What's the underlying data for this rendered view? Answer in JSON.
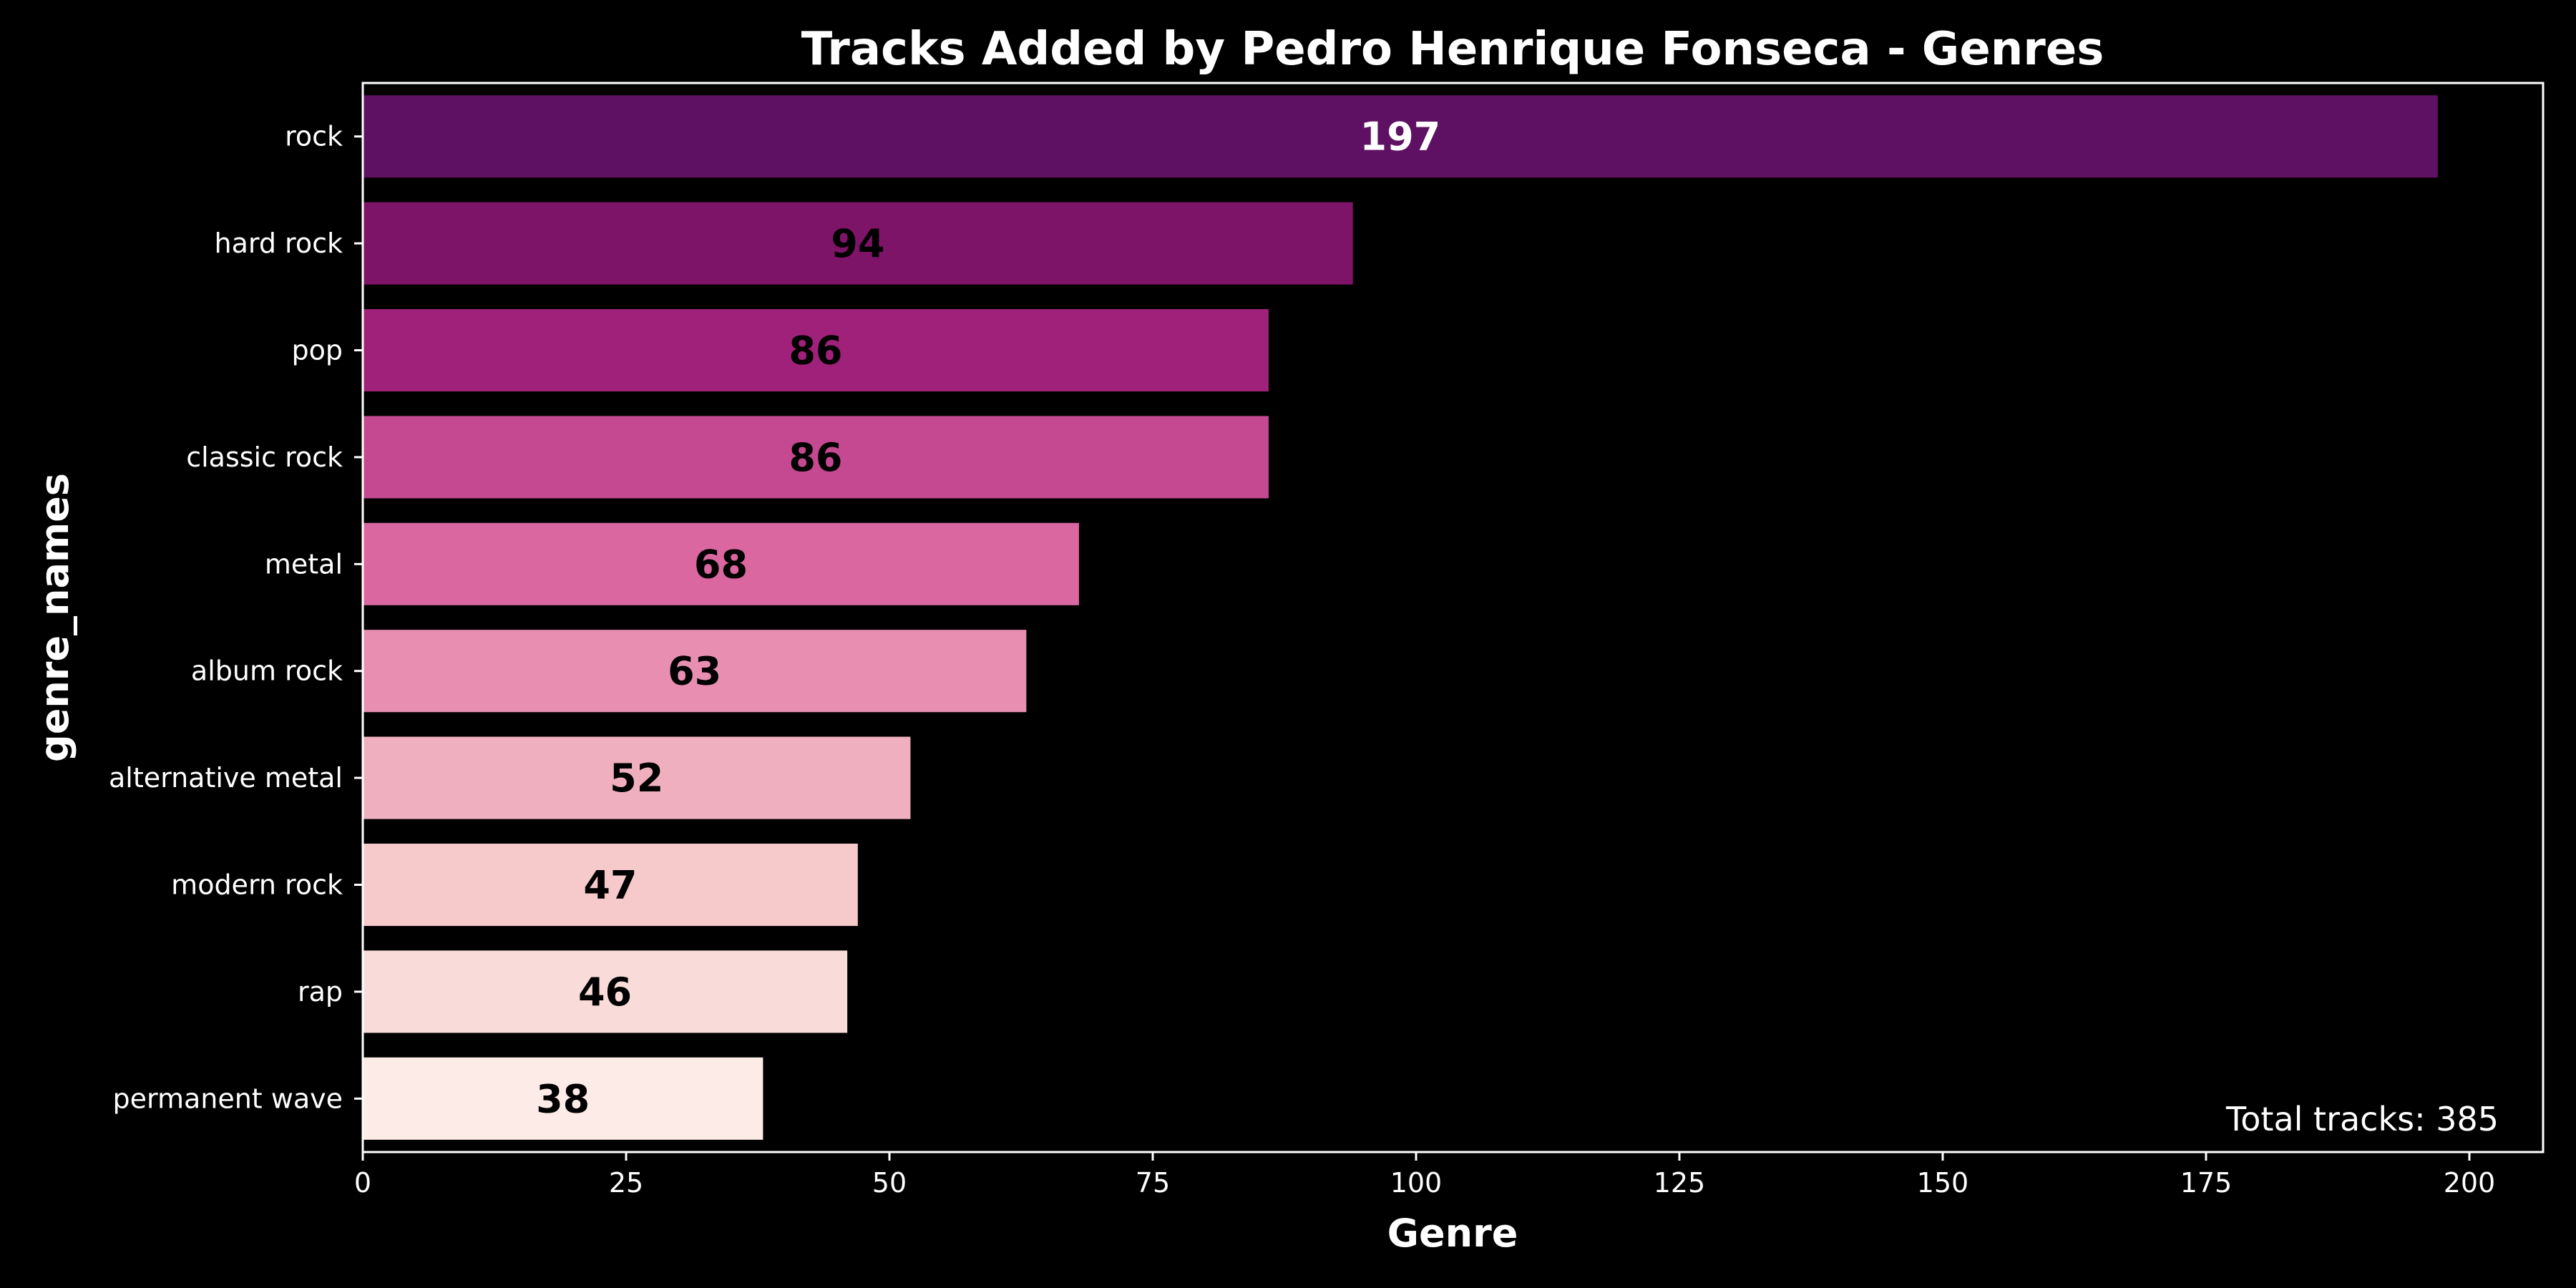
{
  "chart_data": {
    "type": "bar",
    "orientation": "horizontal",
    "title": "Tracks Added by Pedro Henrique Fonseca - Genres",
    "xlabel": "Genre",
    "ylabel": "genre_names",
    "categories": [
      "rock",
      "hard rock",
      "pop",
      "classic rock",
      "metal",
      "album rock",
      "alternative metal",
      "modern rock",
      "rap",
      "permanent wave"
    ],
    "values": [
      197,
      94,
      86,
      86,
      68,
      63,
      52,
      47,
      46,
      38
    ],
    "bar_colors": [
      "#5e1063",
      "#7e1468",
      "#a0217a",
      "#c44991",
      "#da679f",
      "#e88fb1",
      "#f0afbe",
      "#f6c9cb",
      "#f9dcd9",
      "#fdebe7"
    ],
    "data_label_colors": [
      "#ffffff",
      "#000000",
      "#000000",
      "#000000",
      "#000000",
      "#000000",
      "#000000",
      "#000000",
      "#000000",
      "#000000"
    ],
    "xlim": [
      0,
      207
    ],
    "xticks": [
      0,
      25,
      50,
      75,
      100,
      125,
      150,
      175,
      200
    ],
    "grid": false,
    "legend": null,
    "annotation": "Total tracks: 385",
    "annotation_position": "bottom-right",
    "background": "#000000",
    "foreground": "#ffffff"
  }
}
